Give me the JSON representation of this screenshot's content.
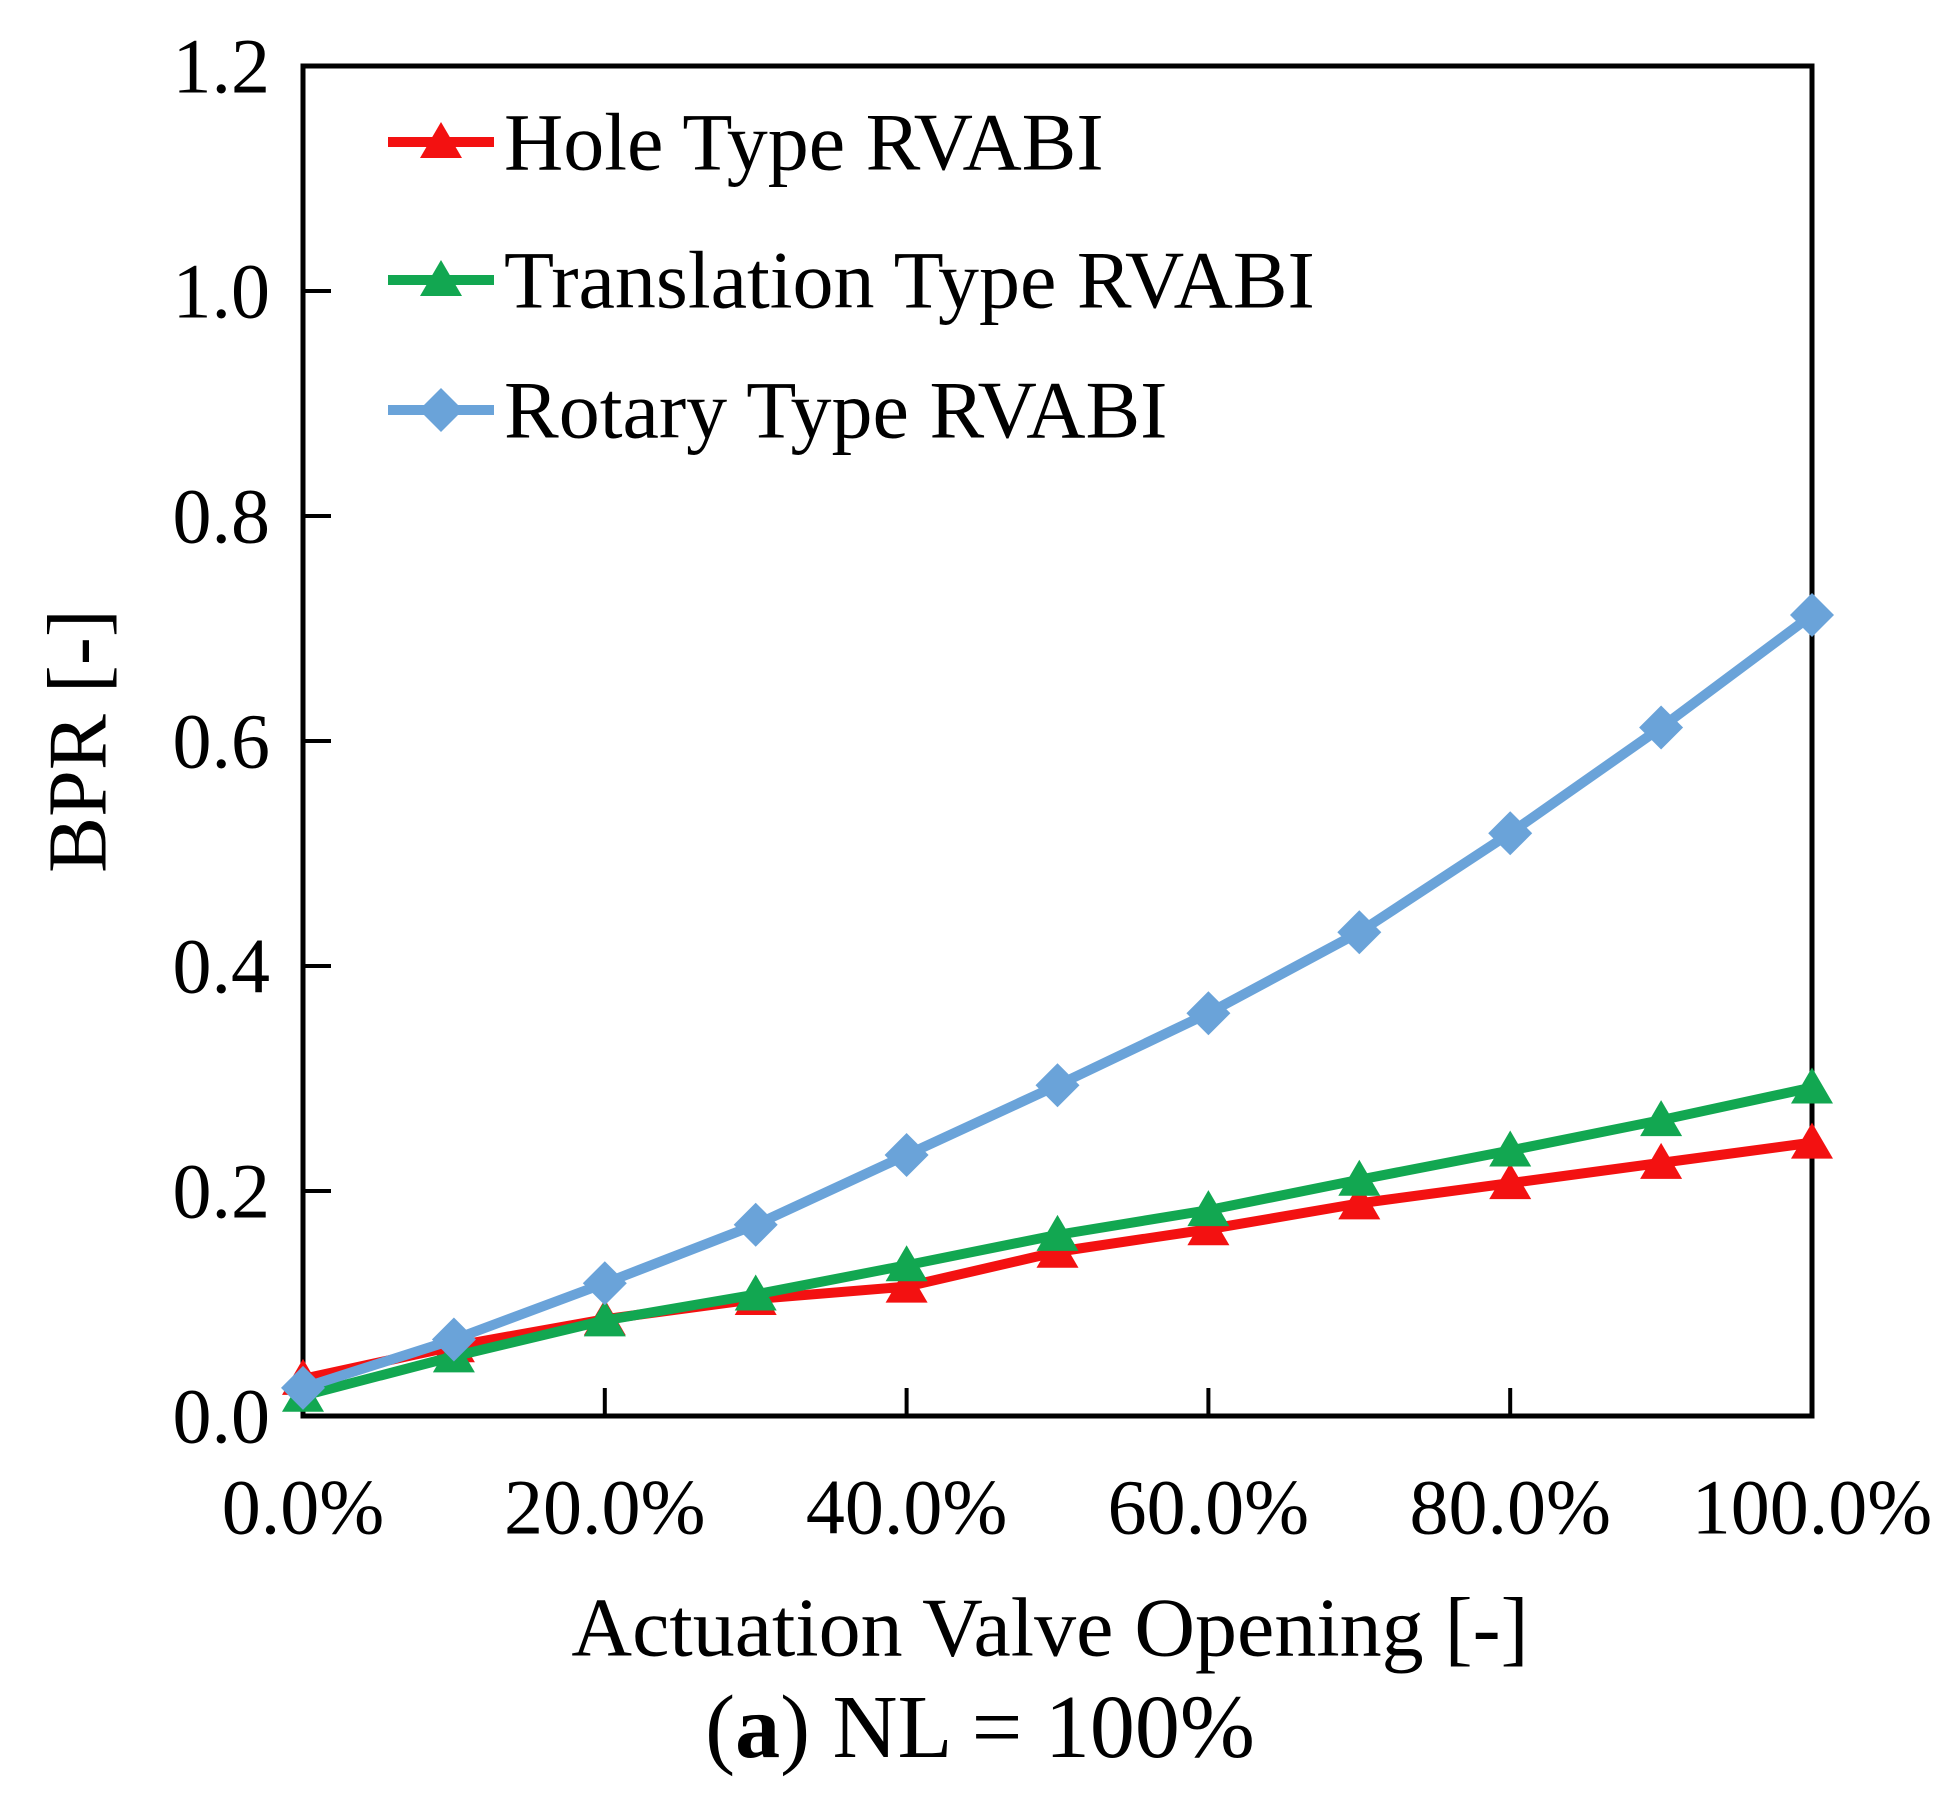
{
  "figure": {
    "caption": {
      "prefix": "(",
      "bold": "a",
      "suffix": ") NL = 100%"
    }
  },
  "chart_data": {
    "type": "line",
    "title": "",
    "xlabel": "Actuation Valve Opening [-]",
    "ylabel": "BPR [-]",
    "grid": false,
    "legend_position": "upper-left-inside",
    "xlim_percent": [
      0,
      100
    ],
    "ylim": [
      0.0,
      1.2
    ],
    "x_percent": [
      0,
      10,
      20,
      30,
      40,
      50,
      60,
      70,
      80,
      90,
      100
    ],
    "x_tick_percent": [
      0,
      20,
      40,
      60,
      80,
      100
    ],
    "x_tick_labels": [
      "0.0%",
      "20.0%",
      "40.0%",
      "60.0%",
      "80.0%",
      "100.0%"
    ],
    "y_ticks": [
      0.0,
      0.2,
      0.4,
      0.6,
      0.8,
      1.0,
      1.2
    ],
    "series": [
      {
        "name": "Hole Type RVABI",
        "color": "#f31111",
        "marker": "triangle",
        "values": [
          0.033,
          0.062,
          0.086,
          0.104,
          0.115,
          0.146,
          0.166,
          0.189,
          0.207,
          0.225,
          0.243
        ]
      },
      {
        "name": "Translation Type RVABI",
        "color": "#12a751",
        "marker": "triangle",
        "values": [
          0.018,
          0.053,
          0.085,
          0.108,
          0.134,
          0.161,
          0.183,
          0.21,
          0.236,
          0.263,
          0.292
        ]
      },
      {
        "name": "Rotary Type RVABI",
        "color": "#6aa3d9",
        "marker": "diamond",
        "values": [
          0.025,
          0.068,
          0.118,
          0.17,
          0.232,
          0.294,
          0.358,
          0.43,
          0.518,
          0.612,
          0.712
        ]
      }
    ]
  }
}
